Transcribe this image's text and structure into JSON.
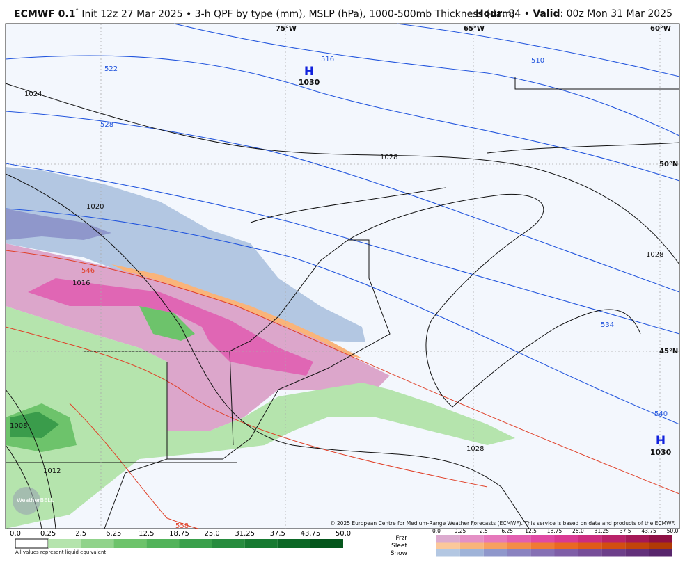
{
  "header": {
    "model": "ECMWF 0.1",
    "degree": "°",
    "description": "Init 12z 27 Mar 2025 • 3-h QPF by type (mm), MSLP (hPa), 1000-500mb Thickness (dam)",
    "hour_label": "Hour",
    "hour": ": 84 •",
    "valid_label": "Valid",
    "valid": ": 00z Mon 31 Mar 2025"
  },
  "map": {
    "grid_labels": [
      "75°W",
      "65°W",
      "60°W",
      "50°N",
      "45°N"
    ],
    "highs": [
      {
        "letter": "H",
        "value": "1030"
      },
      {
        "letter": "H",
        "value": "1030"
      }
    ],
    "thickness_labels": [
      "516",
      "510",
      "522",
      "528",
      "534",
      "540",
      "546",
      "558"
    ],
    "isobar_labels": [
      "1024",
      "1028",
      "1028",
      "1020",
      "1016",
      "1012",
      "1008",
      "1028"
    ],
    "logo": "WeatherBELL",
    "copyright": "© 2025 European Centre for Medium-Range Weather Forecasts (ECMWF). This service is based on data and products of the ECMWF."
  },
  "legend": {
    "rain_ticks": [
      "0.0",
      "0.25",
      "2.5",
      "6.25",
      "12.5",
      "18.75",
      "25.0",
      "31.25",
      "37.5",
      "43.75",
      "50.0"
    ],
    "note": "All values represent liquid equivalent",
    "type_labels": [
      "Frzr",
      "Sleet",
      "Snow"
    ],
    "type_ticks": [
      "0.0",
      "0.25",
      "2.5",
      "6.25",
      "12.5",
      "18.75",
      "25.0",
      "31.25",
      "37.5",
      "43.75",
      "50.0"
    ]
  }
}
